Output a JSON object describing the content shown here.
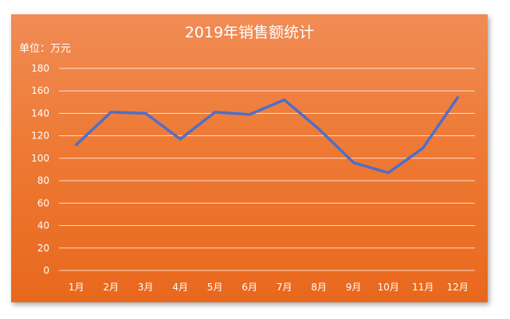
{
  "chart_data": {
    "type": "line",
    "title": "2019年销售额统计",
    "unit_label": "单位：万元",
    "categories": [
      "1月",
      "2月",
      "3月",
      "4月",
      "5月",
      "6月",
      "7月",
      "8月",
      "9月",
      "10月",
      "11月",
      "12月"
    ],
    "series": [
      {
        "values": [
          112,
          141,
          140,
          117,
          141,
          139,
          152,
          126,
          96,
          87,
          109,
          154
        ]
      }
    ],
    "ylim": [
      0,
      180
    ],
    "yticks": [
      0,
      20,
      40,
      60,
      80,
      100,
      120,
      140,
      160,
      180
    ],
    "grid": true,
    "legend": "none",
    "colors": {
      "line": "#4f6fc7",
      "grid": "#ffffff",
      "background": "#ee7a35"
    }
  }
}
